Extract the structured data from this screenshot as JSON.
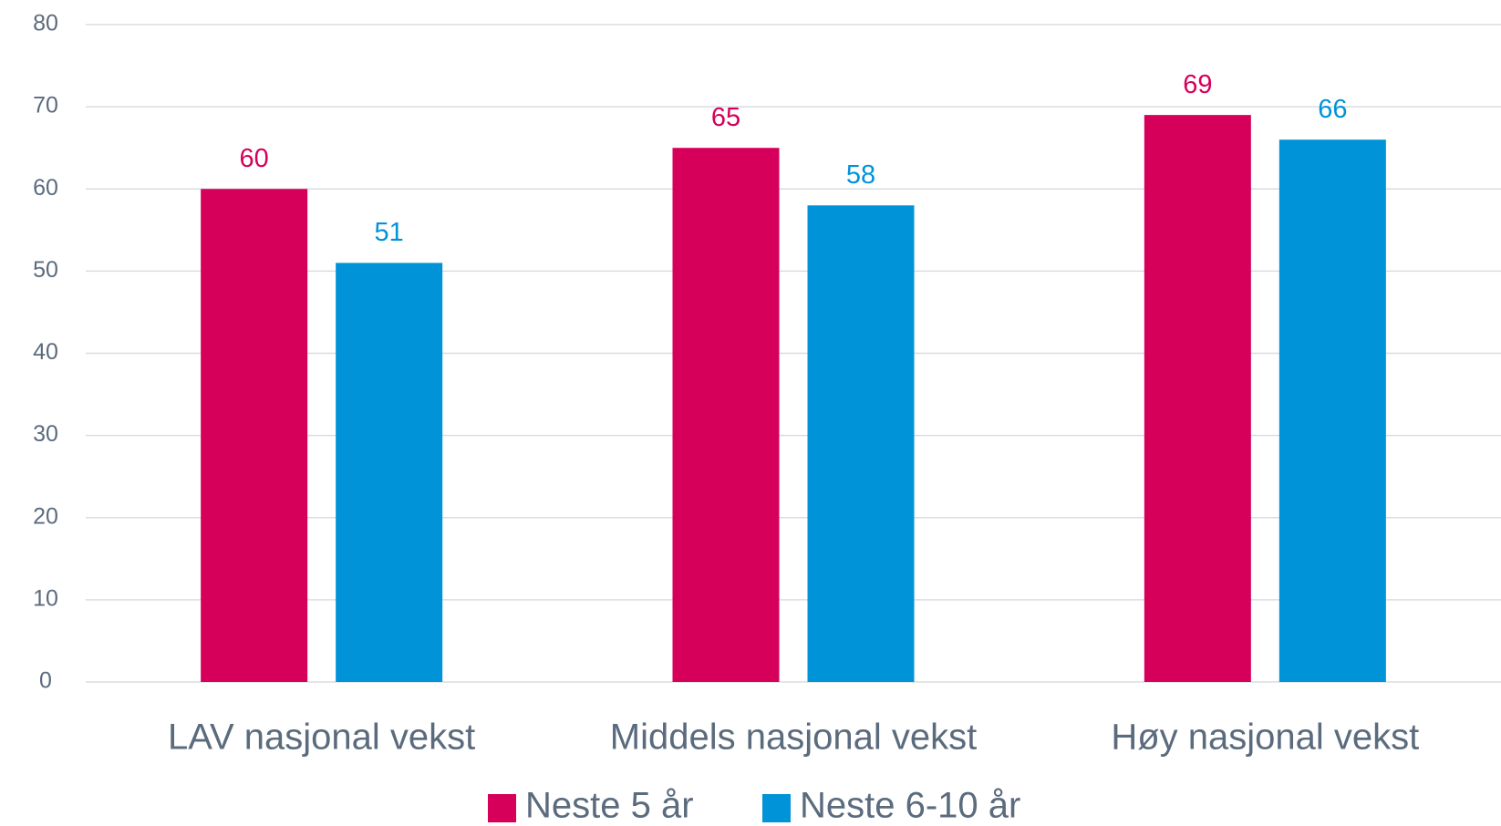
{
  "chart_data": {
    "type": "bar",
    "categories": [
      "LAV nasjonal vekst",
      "Middels nasjonal vekst",
      "Høy nasjonal vekst"
    ],
    "series": [
      {
        "name": "Neste 5 år",
        "color": "#d6005a",
        "values": [
          60,
          65,
          69
        ]
      },
      {
        "name": "Neste 6-10 år",
        "color": "#0093d8",
        "values": [
          51,
          58,
          66
        ]
      }
    ],
    "ylim": [
      0,
      80
    ],
    "yticks": [
      0,
      10,
      20,
      30,
      40,
      50,
      60,
      70,
      80
    ],
    "grid": true,
    "legend": "bottom"
  }
}
